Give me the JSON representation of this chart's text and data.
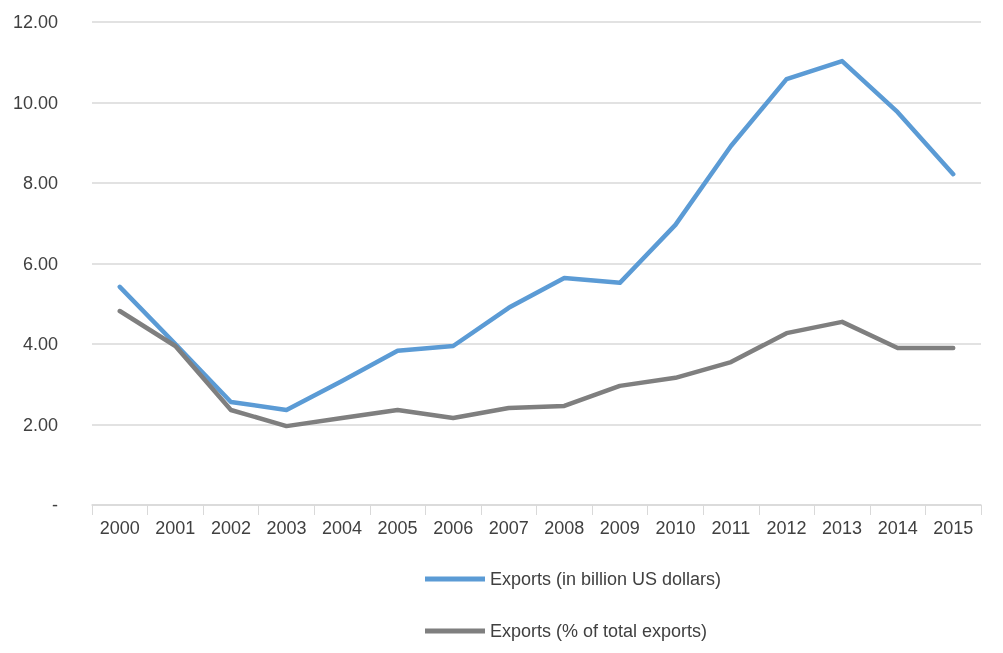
{
  "chart_data": {
    "type": "line",
    "categories": [
      "2000",
      "2001",
      "2002",
      "2003",
      "2004",
      "2005",
      "2006",
      "2007",
      "2008",
      "2009",
      "2010",
      "2011",
      "2012",
      "2013",
      "2014",
      "2015"
    ],
    "series": [
      {
        "name": "Exports (in billion US dollars)",
        "color": "#5b9bd5",
        "values": [
          5.42,
          4.0,
          2.56,
          2.36,
          3.08,
          3.83,
          3.95,
          4.9,
          5.64,
          5.52,
          6.96,
          8.92,
          10.58,
          11.03,
          9.76,
          8.22
        ]
      },
      {
        "name": "Exports (% of total exports)",
        "color": "#7f7f7f",
        "values": [
          4.82,
          3.95,
          2.36,
          1.96,
          2.16,
          2.36,
          2.16,
          2.41,
          2.46,
          2.96,
          3.16,
          3.55,
          4.27,
          4.55,
          3.9,
          3.9
        ]
      }
    ],
    "ylim": [
      0,
      12
    ],
    "yticks": [
      {
        "value": 0,
        "label": "-"
      },
      {
        "value": 2,
        "label": "2.00"
      },
      {
        "value": 4,
        "label": "4.00"
      },
      {
        "value": 6,
        "label": "6.00"
      },
      {
        "value": 8,
        "label": "8.00"
      },
      {
        "value": 10,
        "label": "10.00"
      },
      {
        "value": 12,
        "label": "12.00"
      }
    ],
    "grid": "y",
    "legend": "bottom",
    "marker": "none",
    "line_style": "solid"
  }
}
